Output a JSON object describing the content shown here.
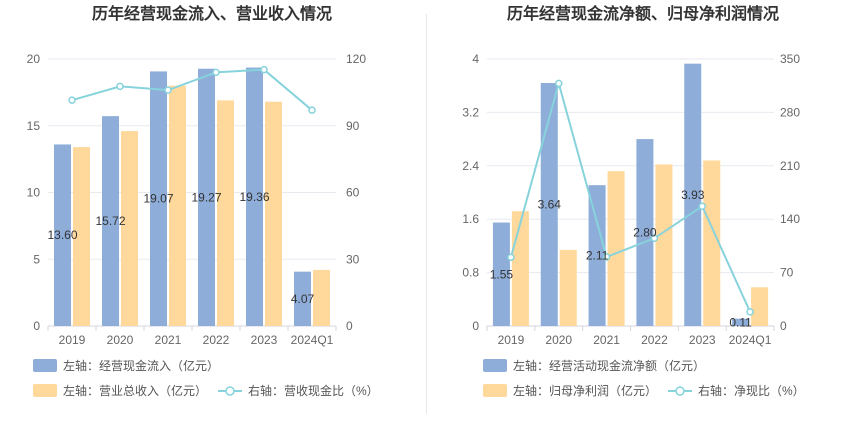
{
  "colors": {
    "bar_primary": "#8eadd9",
    "bar_secondary": "#ffd89c",
    "line": "#87d3dc",
    "grid": "#e8eaf0",
    "axis": "#d4d6dc"
  },
  "chart_data": [
    {
      "type": "bar",
      "title": "历年经营现金流入、营业收入情况",
      "categories": [
        "2019",
        "2020",
        "2021",
        "2022",
        "2023",
        "2024Q1"
      ],
      "left_axis": {
        "ylim": [
          0,
          20
        ],
        "ticks": [
          "0",
          "5",
          "10",
          "15",
          "20"
        ]
      },
      "right_axis": {
        "ylim": [
          0,
          120
        ],
        "ticks": [
          "0",
          "30",
          "60",
          "90",
          "120"
        ]
      },
      "series": [
        {
          "name": "左轴：经营现金流入（亿元）",
          "kind": "bar",
          "axis": "left",
          "values": [
            13.6,
            15.72,
            19.07,
            19.27,
            19.36,
            4.07
          ],
          "labels": [
            "13.60",
            "15.72",
            "19.07",
            "19.27",
            "19.36",
            "4.07"
          ]
        },
        {
          "name": "左轴：营业总收入（亿元）",
          "kind": "bar",
          "axis": "left",
          "values": [
            13.4,
            14.6,
            18.0,
            16.9,
            16.8,
            4.2
          ]
        },
        {
          "name": "右轴：营收现金比（%）",
          "kind": "line",
          "axis": "right",
          "values": [
            101.5,
            107.7,
            106.0,
            114.0,
            115.2,
            97.0
          ]
        }
      ],
      "legend": "bottom"
    },
    {
      "type": "bar",
      "title": "历年经营现金流净额、归母净利润情况",
      "categories": [
        "2019",
        "2020",
        "2021",
        "2022",
        "2023",
        "2024Q1"
      ],
      "left_axis": {
        "ylim": [
          0,
          4
        ],
        "ticks": [
          "0",
          "0.8",
          "1.6",
          "2.4",
          "3.2",
          "4"
        ]
      },
      "right_axis": {
        "ylim": [
          0,
          350
        ],
        "ticks": [
          "0",
          "70",
          "140",
          "210",
          "280",
          "350"
        ]
      },
      "series": [
        {
          "name": "左轴：经营活动现金流净额（亿元）",
          "kind": "bar",
          "axis": "left",
          "values": [
            1.55,
            3.64,
            2.11,
            2.8,
            3.93,
            0.11
          ],
          "labels": [
            "1.55",
            "3.64",
            "2.11",
            "2.80",
            "3.93",
            "0.11"
          ]
        },
        {
          "name": "左轴：归母净利润（亿元）",
          "kind": "bar",
          "axis": "left",
          "values": [
            1.72,
            1.14,
            2.32,
            2.42,
            2.48,
            0.58
          ]
        },
        {
          "name": "右轴：净现比（%）",
          "kind": "line",
          "axis": "right",
          "values": [
            90.0,
            318.0,
            90.5,
            115.0,
            157.0,
            18.5
          ]
        }
      ],
      "legend": "bottom"
    }
  ]
}
